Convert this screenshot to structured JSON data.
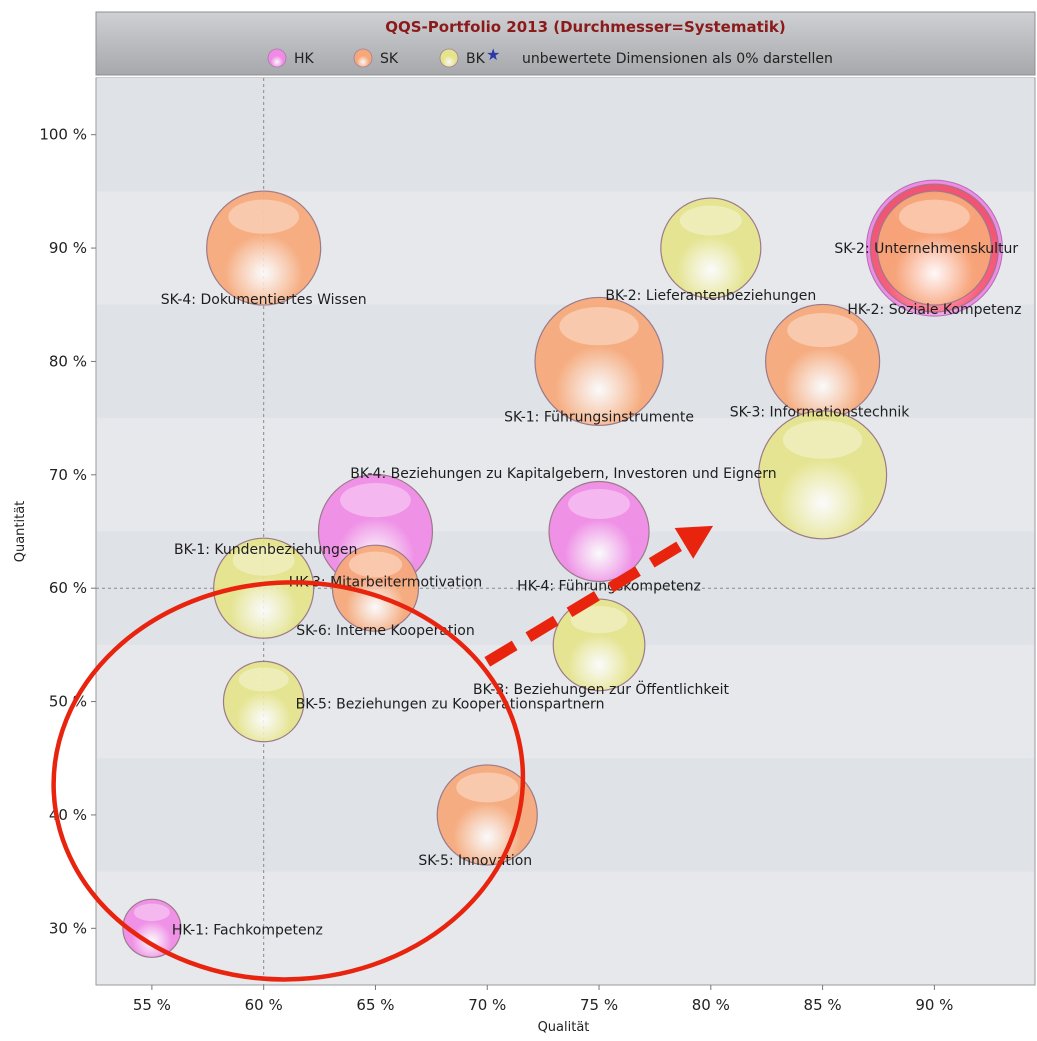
{
  "chart_data": {
    "type": "scatter",
    "title": "QQS-Portfolio 2013 (Durchmesser=Systematik)",
    "xlabel": "Qualität",
    "ylabel": "Quantität",
    "xlim": [
      52.5,
      94.5
    ],
    "ylim": [
      25,
      105
    ],
    "x_ticks": [
      55,
      60,
      65,
      70,
      75,
      80,
      85,
      90
    ],
    "x_tick_labels": [
      "55 %",
      "60 %",
      "65 %",
      "70 %",
      "75 %",
      "80 %",
      "85 %",
      "90 %"
    ],
    "y_ticks": [
      30,
      40,
      50,
      60,
      70,
      80,
      90,
      100
    ],
    "y_tick_labels": [
      "30 %",
      "40 %",
      "50 %",
      "60 %",
      "70 %",
      "80 %",
      "90 %",
      "100 %"
    ],
    "grid": true,
    "reference_lines": {
      "x": 60,
      "y": 60
    },
    "legend": {
      "placement": "top",
      "items": [
        {
          "name": "HK",
          "color": "#f08ae6"
        },
        {
          "name": "SK",
          "color": "#f7a878"
        },
        {
          "name": "BK",
          "color": "#e5e48a"
        }
      ],
      "option_label": "unbewertete Dimensionen als 0% darstellen",
      "option_icon": "star-icon"
    },
    "series": [
      {
        "name": "HK",
        "color": "#f08ae6",
        "points": [
          {
            "label": "HK-1: Fachkompetenz",
            "x": 55,
            "y": 30,
            "size": 1
          },
          {
            "label": "HK-2: Soziale Kompetenz",
            "x": 90,
            "y": 90,
            "size": 3.5
          },
          {
            "label": "HK-3: Mitarbeitermotivation",
            "x": 65,
            "y": 65,
            "size": 3
          },
          {
            "label": "HK-4: Führungskompetenz",
            "x": 75,
            "y": 65,
            "size": 2.5
          }
        ]
      },
      {
        "name": "SK",
        "color": "#f7a878",
        "points": [
          {
            "label": "SK-1: Führungsinstrumente",
            "x": 75,
            "y": 80,
            "size": 3.5
          },
          {
            "label": "SK-2: Unternehmenskultur",
            "x": 90,
            "y": 90,
            "size": 3
          },
          {
            "label": "SK-3: Informationstechnik",
            "x": 85,
            "y": 80,
            "size": 3
          },
          {
            "label": "SK-4: Dokumentiertes Wissen",
            "x": 60,
            "y": 90,
            "size": 3
          },
          {
            "label": "SK-5: Innovation",
            "x": 70,
            "y": 40,
            "size": 2.5
          },
          {
            "label": "SK-6: Interne Kooperation",
            "x": 65,
            "y": 60,
            "size": 2
          }
        ]
      },
      {
        "name": "BK",
        "color": "#e5e48a",
        "points": [
          {
            "label": "BK-1: Kundenbeziehungen",
            "x": 60,
            "y": 60,
            "size": 2.5
          },
          {
            "label": "BK-2: Lieferantenbeziehungen",
            "x": 80,
            "y": 90,
            "size": 2.5
          },
          {
            "label": "BK-3: Beziehungen zur Öffentlichkeit",
            "x": 75,
            "y": 55,
            "size": 2.2
          },
          {
            "label": "BK-4: Beziehungen zu Kapitalgebern, Investoren und Eignern",
            "x": 85,
            "y": 70,
            "size": 3.5
          },
          {
            "label": "BK-5: Beziehungen zu Kooperationspartnern",
            "x": 60,
            "y": 50,
            "size": 1.8
          }
        ]
      }
    ],
    "annotations": [
      {
        "type": "ellipse",
        "color": "#e8230e",
        "cx": 61.1,
        "cy": 43,
        "rx": 10.5,
        "ry": 17.5
      },
      {
        "type": "dashed-arrow",
        "color": "#e8230e",
        "from": [
          70,
          53.5
        ],
        "to": [
          80.1,
          65.5
        ]
      }
    ]
  }
}
